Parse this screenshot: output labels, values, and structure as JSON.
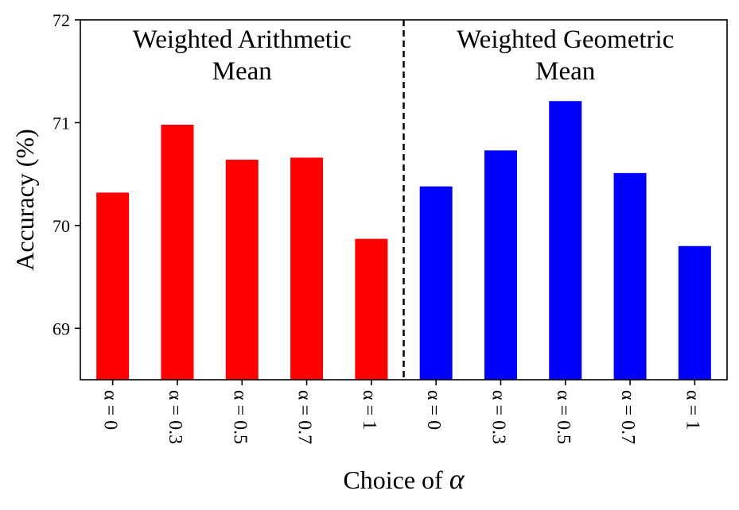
{
  "chart_data": {
    "type": "bar",
    "ylabel": "Accuracy (%)",
    "xlabel_prefix": "Choice of ",
    "xlabel_symbol": "α",
    "ylim": [
      68.5,
      72.0
    ],
    "yticks": [
      69,
      70,
      71,
      72
    ],
    "grid": false,
    "groups": [
      {
        "title_line1": "Weighted Arithmetic",
        "title_line2": "Mean",
        "color": "#ff0000"
      },
      {
        "title_line1": "Weighted Geometric",
        "title_line2": "Mean",
        "color": "#0000ff"
      }
    ],
    "categories": [
      "α = 0",
      "α = 0.3",
      "α = 0.5",
      "α = 0.7",
      "α = 1",
      "α = 0",
      "α = 0.3",
      "α = 0.5",
      "α = 0.7",
      "α = 1"
    ],
    "bar_group": [
      0,
      0,
      0,
      0,
      0,
      1,
      1,
      1,
      1,
      1
    ],
    "values": [
      70.32,
      70.98,
      70.64,
      70.66,
      69.87,
      70.38,
      70.73,
      71.21,
      70.51,
      69.8
    ],
    "separator": "dashed vertical line between the two groups"
  }
}
